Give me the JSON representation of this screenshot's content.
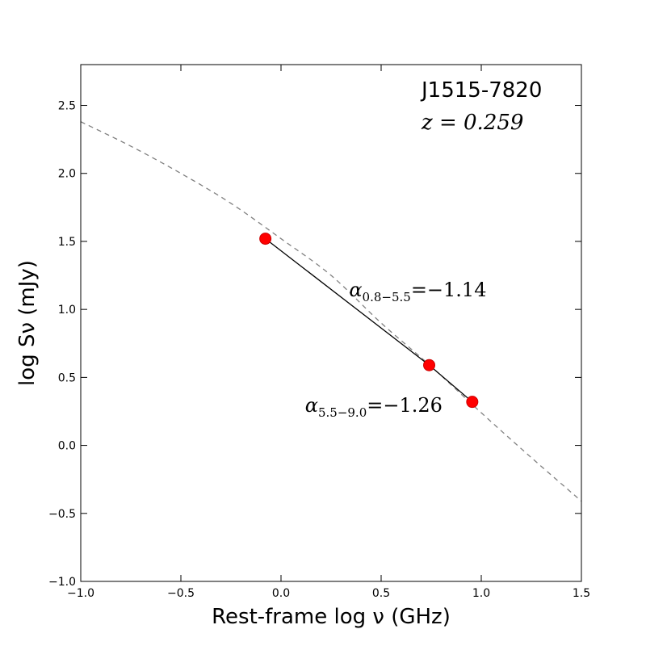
{
  "chart_data": {
    "type": "scatter",
    "title": "J1515-7820",
    "subtitle": "z = 0.259",
    "xlabel": "Rest-frame log ν (GHz)",
    "ylabel": "log Sν (mJy)",
    "xlim": [
      -1.0,
      1.5
    ],
    "ylim": [
      -1.0,
      2.8
    ],
    "xticks": [
      -1.0,
      -0.5,
      0.0,
      0.5,
      1.0,
      1.5
    ],
    "xtick_labels": [
      "−1.0",
      "−0.5",
      "0.0",
      "0.5",
      "1.0",
      "1.5"
    ],
    "yticks": [
      -1.0,
      -0.5,
      0.0,
      0.5,
      1.0,
      1.5,
      2.0,
      2.5
    ],
    "ytick_labels": [
      "−1.0",
      "−0.5",
      "0.0",
      "0.5",
      "1.0",
      "1.5",
      "2.0",
      "2.5"
    ],
    "grid": false,
    "points": {
      "x": [
        -0.078,
        0.74,
        0.955
      ],
      "y": [
        1.52,
        0.59,
        0.32
      ],
      "color": "#ff0000"
    },
    "fit_lines": [
      {
        "x": [
          -0.078,
          0.74
        ],
        "y": [
          1.52,
          0.59
        ],
        "color": "#000000",
        "style": "solid"
      },
      {
        "x": [
          0.74,
          0.955
        ],
        "y": [
          0.59,
          0.32
        ],
        "color": "#000000",
        "style": "solid"
      }
    ],
    "model_curve": {
      "color": "#808080",
      "style": "dashed",
      "x": [
        -1.0,
        -0.75,
        -0.5,
        -0.25,
        0.0,
        0.25,
        0.5,
        0.75,
        1.0,
        1.25,
        1.5
      ],
      "y": [
        2.38,
        2.2,
        2.0,
        1.78,
        1.52,
        1.25,
        0.9,
        0.58,
        0.24,
        -0.09,
        -0.41
      ]
    },
    "annotations": [
      {
        "name": "alpha-0.8-5.5",
        "symbol": "α",
        "subscript": "0.8−5.5",
        "value": "=−1.14",
        "x": 0.34,
        "y": 1.15
      },
      {
        "name": "alpha-5.5-9.0",
        "symbol": "α",
        "subscript": "5.5−9.0",
        "value": "=−1.26",
        "x": 0.12,
        "y": 0.3
      }
    ]
  }
}
